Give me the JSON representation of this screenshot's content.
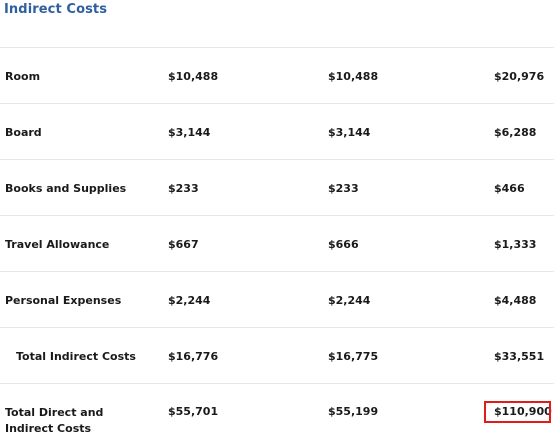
{
  "section": {
    "title": "Indirect Costs"
  },
  "rows": [
    {
      "label": "Room",
      "values": [
        "$10,488",
        "$10,488",
        "$20,976"
      ]
    },
    {
      "label": "Board",
      "values": [
        "$3,144",
        "$3,144",
        "$6,288"
      ]
    },
    {
      "label": "Books and Supplies",
      "values": [
        "$233",
        "$233",
        "$466"
      ]
    },
    {
      "label": "Travel Allowance",
      "values": [
        "$667",
        "$666",
        "$1,333"
      ]
    },
    {
      "label": "Personal Expenses",
      "values": [
        "$2,244",
        "$2,244",
        "$4,488"
      ]
    },
    {
      "label": "Total Indirect Costs",
      "values": [
        "$16,776",
        "$16,775",
        "$33,551"
      ]
    },
    {
      "label": "Total Direct and Indirect Costs",
      "values": [
        "$55,701",
        "$55,199",
        "$110,900"
      ]
    }
  ],
  "colors": {
    "title": "#2f5f9e",
    "text": "#1a1a1a",
    "divider": "#e6e6e6",
    "highlight": "#e21b1b"
  }
}
